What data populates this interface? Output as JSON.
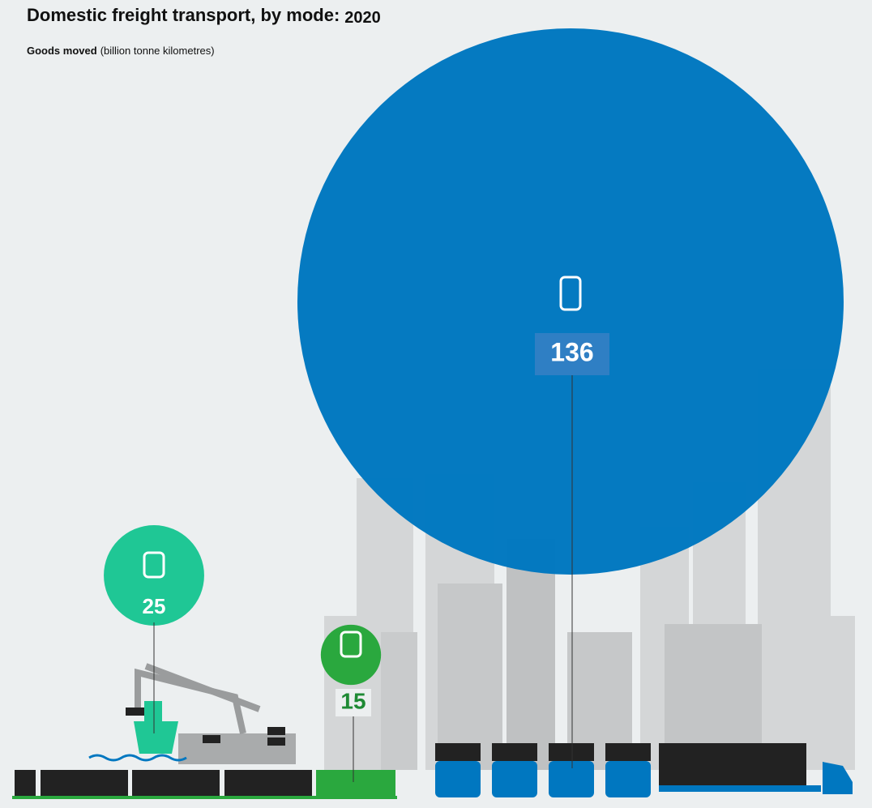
{
  "chart_data": {
    "type": "bubble",
    "title": "Domestic freight transport, by mode:",
    "date": "2020",
    "subtitle": "Goods moved",
    "unit": "(billion tonne kilometres)",
    "values": [
      25,
      15,
      136
    ],
    "colors": [
      "#1fc795",
      "#2aa83e",
      "#0077c0"
    ]
  }
}
